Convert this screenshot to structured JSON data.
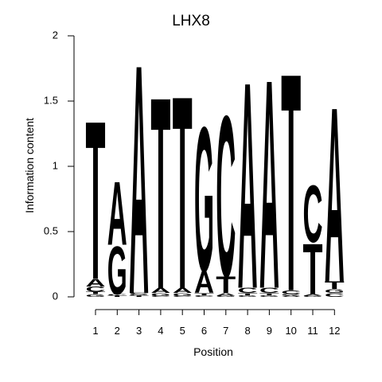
{
  "chart_data": {
    "type": "sequence-logo",
    "title": "LHX8",
    "xlabel": "Position",
    "ylabel": "Information content",
    "ylim": [
      0,
      2
    ],
    "y_ticks": [
      "0",
      "0.5",
      "1",
      "1.5",
      "2"
    ],
    "y_tick_values": [
      0,
      0.5,
      1,
      1.5,
      2
    ],
    "positions": [
      "1",
      "2",
      "3",
      "4",
      "5",
      "6",
      "7",
      "8",
      "9",
      "10",
      "11",
      "12"
    ],
    "colors": {
      "A": "#00ee00",
      "C": "#0000ee",
      "G": "#f5a000",
      "T": "#ff0000"
    },
    "stacks": [
      [
        {
          "letter": "G",
          "height": 0.02
        },
        {
          "letter": "T",
          "height": 0.02
        },
        {
          "letter": "C",
          "height": 0.04
        },
        {
          "letter": "A",
          "height": 0.06
        },
        {
          "letter": "T",
          "height": 1.25
        }
      ],
      [
        {
          "letter": "T",
          "height": 0.01
        },
        {
          "letter": "C",
          "height": 0.01
        },
        {
          "letter": "G",
          "height": 0.38
        },
        {
          "letter": "A",
          "height": 0.5
        }
      ],
      [
        {
          "letter": "T",
          "height": 0.01
        },
        {
          "letter": "G",
          "height": 0.01
        },
        {
          "letter": "C",
          "height": 0.01
        },
        {
          "letter": "A",
          "height": 1.81
        }
      ],
      [
        {
          "letter": "C",
          "height": 0.01
        },
        {
          "letter": "G",
          "height": 0.02
        },
        {
          "letter": "A",
          "height": 0.04
        },
        {
          "letter": "T",
          "height": 1.51
        }
      ],
      [
        {
          "letter": "C",
          "height": 0.01
        },
        {
          "letter": "G",
          "height": 0.02
        },
        {
          "letter": "A",
          "height": 0.04
        },
        {
          "letter": "T",
          "height": 1.52
        }
      ],
      [
        {
          "letter": "C",
          "height": 0.01
        },
        {
          "letter": "T",
          "height": 0.02
        },
        {
          "letter": "A",
          "height": 0.17
        },
        {
          "letter": "G",
          "height": 1.14
        }
      ],
      [
        {
          "letter": "G",
          "height": 0.01
        },
        {
          "letter": "A",
          "height": 0.02
        },
        {
          "letter": "T",
          "height": 0.13
        },
        {
          "letter": "C",
          "height": 1.27
        }
      ],
      [
        {
          "letter": "G",
          "height": 0.01
        },
        {
          "letter": "T",
          "height": 0.02
        },
        {
          "letter": "C",
          "height": 0.04
        },
        {
          "letter": "A",
          "height": 1.63
        }
      ],
      [
        {
          "letter": "G",
          "height": 0.01
        },
        {
          "letter": "T",
          "height": 0.02
        },
        {
          "letter": "C",
          "height": 0.04
        },
        {
          "letter": "A",
          "height": 1.65
        }
      ],
      [
        {
          "letter": "A",
          "height": 0.01
        },
        {
          "letter": "G",
          "height": 0.01
        },
        {
          "letter": "C",
          "height": 0.03
        },
        {
          "letter": "T",
          "height": 1.72
        }
      ],
      [
        {
          "letter": "G",
          "height": 0.01
        },
        {
          "letter": "A",
          "height": 0.01
        },
        {
          "letter": "T",
          "height": 0.4
        },
        {
          "letter": "C",
          "height": 0.45
        }
      ],
      [
        {
          "letter": "C",
          "height": 0.03
        },
        {
          "letter": "G",
          "height": 0.03
        },
        {
          "letter": "T",
          "height": 0.06
        },
        {
          "letter": "A",
          "height": 1.38
        }
      ]
    ]
  }
}
